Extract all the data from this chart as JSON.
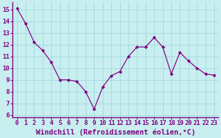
{
  "x": [
    0,
    1,
    2,
    3,
    4,
    5,
    6,
    7,
    8,
    9,
    10,
    11,
    12,
    13,
    14,
    15,
    16,
    17,
    18,
    19,
    20,
    21,
    22,
    23
  ],
  "y": [
    15.1,
    13.8,
    12.2,
    11.5,
    10.5,
    9.0,
    9.0,
    8.85,
    8.0,
    6.5,
    8.4,
    9.35,
    9.7,
    11.0,
    11.8,
    11.8,
    12.6,
    11.8,
    9.5,
    11.35,
    10.6,
    10.0,
    9.5,
    9.4
  ],
  "line_color": "#800080",
  "marker": "D",
  "marker_size": 2.2,
  "bg_color": "#c8eef0",
  "grid_color": "#a0d8dc",
  "xlabel": "Windchill (Refroidissement éolien,°C)",
  "ylabel_ticks": [
    6,
    7,
    8,
    9,
    10,
    11,
    12,
    13,
    14,
    15
  ],
  "xlim": [
    -0.5,
    23.5
  ],
  "ylim": [
    5.8,
    15.6
  ],
  "xtick_labels": [
    "0",
    "1",
    "2",
    "3",
    "4",
    "5",
    "6",
    "7",
    "8",
    "9",
    "10",
    "11",
    "12",
    "13",
    "14",
    "15",
    "16",
    "17",
    "18",
    "19",
    "20",
    "21",
    "22",
    "23"
  ],
  "tick_color": "#800080",
  "spine_color": "#800080",
  "font_size": 6.5,
  "xlabel_fontsize": 7.5,
  "lw": 0.9
}
